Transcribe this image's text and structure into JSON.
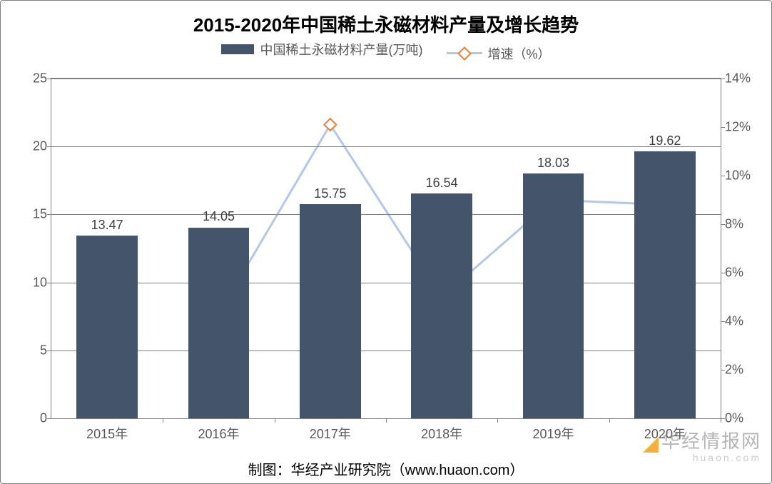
{
  "chart": {
    "type": "bar+line",
    "title": "2015-2020年中国稀土永磁材料产量及增长趋势",
    "title_fontsize": 26,
    "legend": {
      "bar_label": "中国稀土永磁材料产量(万吨)",
      "line_label": "增速（%）",
      "fontsize": 18
    },
    "categories": [
      "2015年",
      "2016年",
      "2017年",
      "2018年",
      "2019年",
      "2020年"
    ],
    "bars": {
      "values": [
        13.47,
        14.05,
        15.75,
        16.54,
        18.03,
        19.62
      ],
      "color": "#44546a",
      "bar_width_ratio": 0.55,
      "label_fontsize": 18,
      "label_color": "#404040"
    },
    "line": {
      "values": [
        null,
        4.3,
        12.1,
        5.0,
        9.0,
        8.8
      ],
      "line_color": "#b4c7e7",
      "line_width": 3,
      "marker_border": "#ed7d31",
      "marker_fill": "#ffffff",
      "marker_size": 12,
      "marker_shape": "diamond"
    },
    "y_left": {
      "min": 0,
      "max": 25,
      "step": 5,
      "ticks": [
        0,
        5,
        10,
        15,
        20,
        25
      ],
      "labels": [
        "0",
        "5",
        "10",
        "15",
        "20",
        "25"
      ]
    },
    "y_right": {
      "min": 0,
      "max": 14,
      "step": 2,
      "ticks": [
        0,
        2,
        4,
        6,
        8,
        10,
        12,
        14
      ],
      "labels": [
        "0%",
        "2%",
        "4%",
        "6%",
        "8%",
        "10%",
        "12%",
        "14%"
      ]
    },
    "axis_color": "#808080",
    "grid_color": "#808080",
    "background_color": "#ffffff",
    "tick_fontsize": 18,
    "tick_color": "#595959"
  },
  "footer": {
    "text": "制图：华经产业研究院（www.huaon.com）",
    "fontsize": 20
  },
  "watermark": {
    "text": "华经情报网",
    "sub": "huaon.com",
    "logo_color": "#f5a623"
  }
}
